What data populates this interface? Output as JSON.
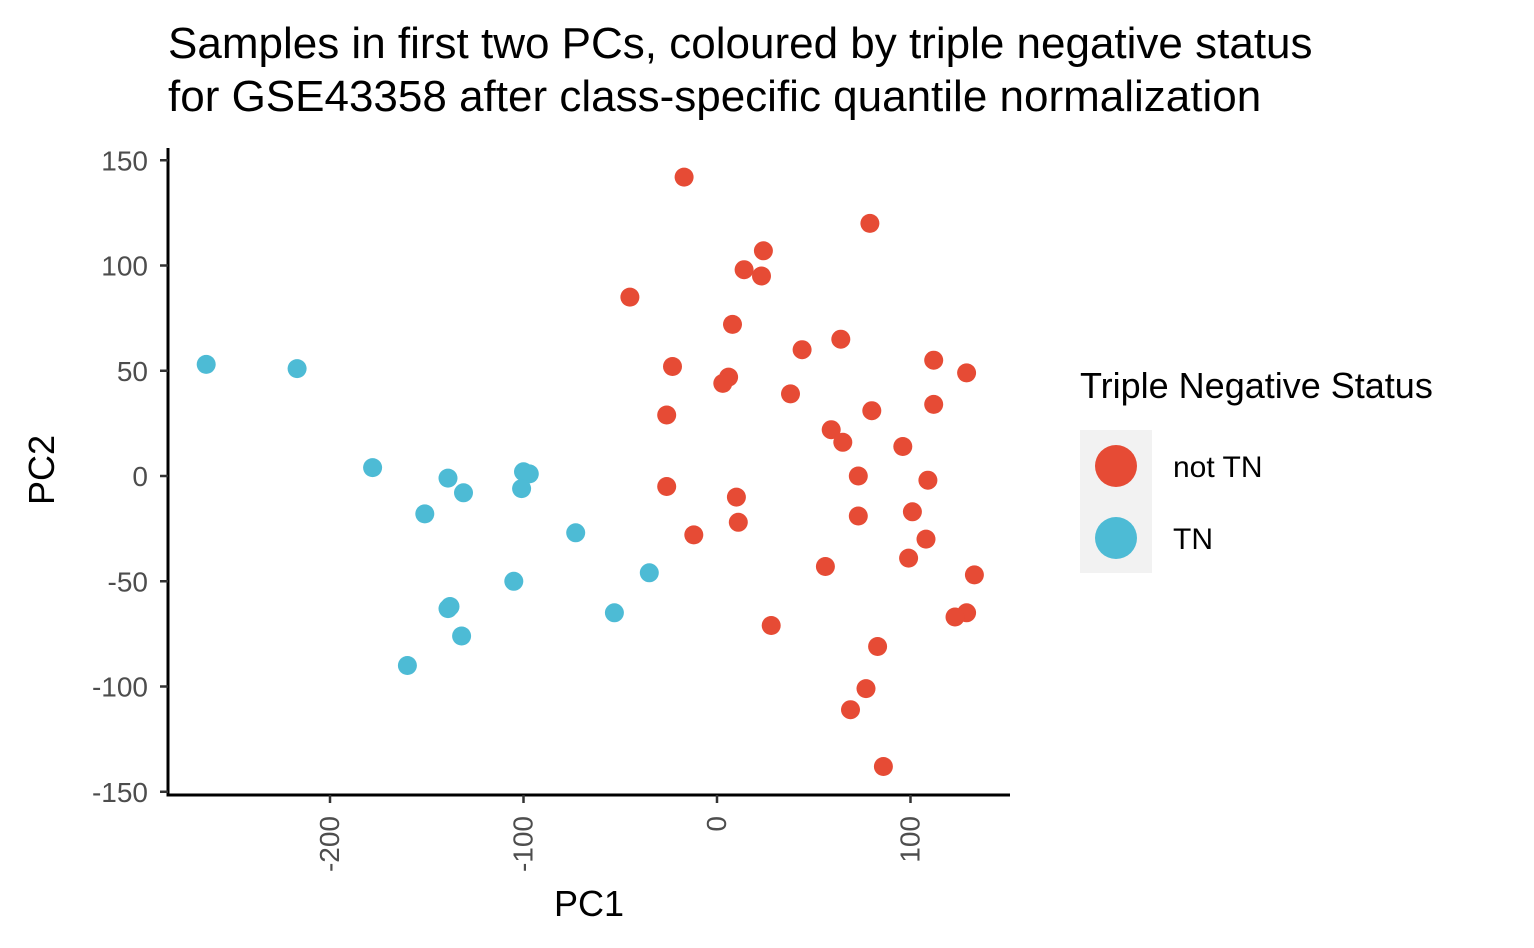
{
  "chart_data": {
    "type": "scatter",
    "title_lines": [
      "Samples in first two PCs, coloured by triple negative status",
      "for GSE43358 after class-specific quantile normalization"
    ],
    "xlabel": "PC1",
    "ylabel": "PC2",
    "xlim": [
      -280,
      150
    ],
    "ylim": [
      -150,
      150
    ],
    "x_ticks": [
      -200,
      -100,
      0,
      100
    ],
    "x_tick_labels": [
      "-200",
      "-100",
      "0",
      "100"
    ],
    "y_ticks": [
      150,
      100,
      50,
      0,
      -50,
      -100,
      -150
    ],
    "y_tick_labels": [
      "150",
      "100",
      "50",
      "0",
      "-50",
      "-100",
      "-150"
    ],
    "grid": false,
    "legend": {
      "title": "Triple Negative Status",
      "placement": "right",
      "entries": [
        "not TN",
        "TN"
      ]
    },
    "series": [
      {
        "name": "not TN",
        "color": "#E64B35",
        "points": [
          [
            -17,
            142
          ],
          [
            79,
            120
          ],
          [
            24,
            107
          ],
          [
            14,
            98
          ],
          [
            23,
            95
          ],
          [
            -45,
            85
          ],
          [
            8,
            72
          ],
          [
            64,
            65
          ],
          [
            44,
            60
          ],
          [
            -23,
            52
          ],
          [
            112,
            55
          ],
          [
            129,
            49
          ],
          [
            6,
            47
          ],
          [
            3,
            44
          ],
          [
            38,
            39
          ],
          [
            80,
            31
          ],
          [
            112,
            34
          ],
          [
            -26,
            29
          ],
          [
            59,
            22
          ],
          [
            65,
            16
          ],
          [
            96,
            14
          ],
          [
            73,
            0
          ],
          [
            109,
            -2
          ],
          [
            -26,
            -5
          ],
          [
            10,
            -10
          ],
          [
            101,
            -17
          ],
          [
            11,
            -22
          ],
          [
            73,
            -19
          ],
          [
            -12,
            -28
          ],
          [
            108,
            -30
          ],
          [
            99,
            -39
          ],
          [
            56,
            -43
          ],
          [
            133,
            -47
          ],
          [
            129,
            -65
          ],
          [
            123,
            -67
          ],
          [
            28,
            -71
          ],
          [
            83,
            -81
          ],
          [
            77,
            -101
          ],
          [
            69,
            -111
          ],
          [
            86,
            -138
          ]
        ]
      },
      {
        "name": "TN",
        "color": "#4DBBD5",
        "points": [
          [
            -264,
            53
          ],
          [
            -217,
            51
          ],
          [
            -178,
            4
          ],
          [
            -139,
            -1
          ],
          [
            -131,
            -8
          ],
          [
            -151,
            -18
          ],
          [
            -100,
            2
          ],
          [
            -97,
            1
          ],
          [
            -101,
            -6
          ],
          [
            -73,
            -27
          ],
          [
            -35,
            -46
          ],
          [
            -105,
            -50
          ],
          [
            -138,
            -62
          ],
          [
            -139,
            -63
          ],
          [
            -53,
            -65
          ],
          [
            -132,
            -76
          ],
          [
            -160,
            -90
          ]
        ]
      }
    ]
  }
}
